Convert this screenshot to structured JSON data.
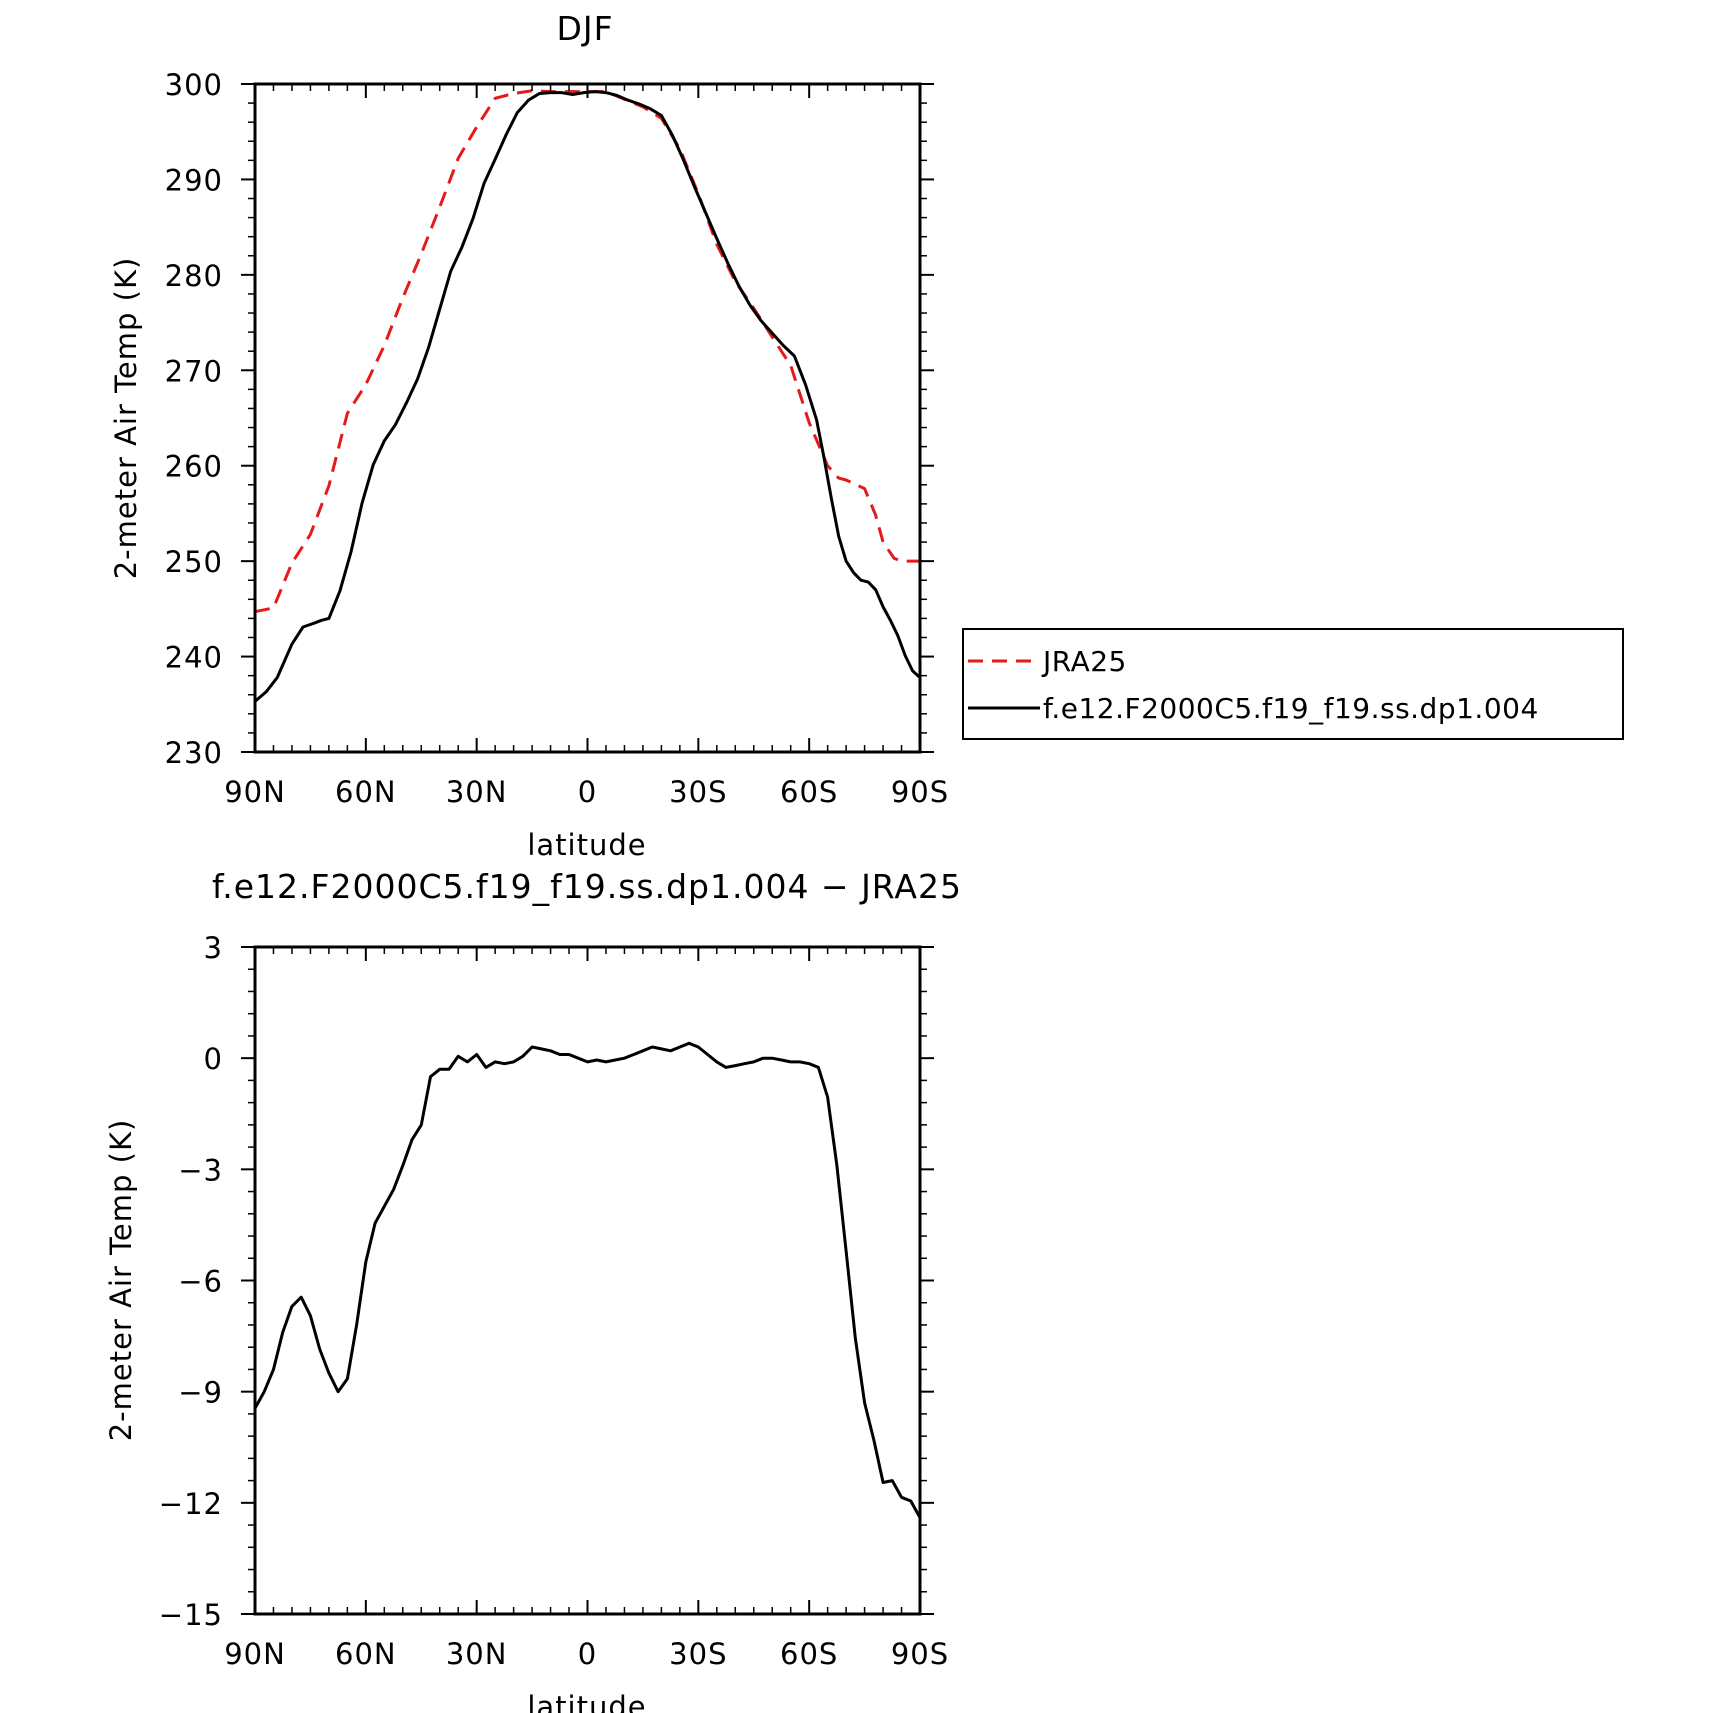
{
  "chart_data": [
    {
      "type": "line",
      "title": "DJF",
      "xlabel": "latitude",
      "ylabel": "2-meter Air Temp (K)",
      "xlim": [
        90,
        -90
      ],
      "ylim": [
        230,
        300
      ],
      "x_ticks": [
        90,
        60,
        30,
        0,
        -30,
        -60,
        -90
      ],
      "x_tick_labels": [
        "90N",
        "60N",
        "30N",
        "0",
        "30S",
        "60S",
        "90S"
      ],
      "y_ticks": [
        230,
        240,
        250,
        260,
        270,
        280,
        290,
        300
      ],
      "y_tick_labels": [
        "230",
        "240",
        "250",
        "260",
        "270",
        "280",
        "290",
        "300"
      ],
      "grid": false,
      "legend_position": "right",
      "series": [
        {
          "name": "JRA25",
          "color": "#e41a1c",
          "dash": "dashed",
          "x": [
            90,
            85,
            80,
            75,
            70,
            65,
            60,
            55,
            50,
            45,
            40,
            35,
            30,
            25,
            20,
            15,
            10,
            5,
            0,
            -5,
            -10,
            -15,
            -20,
            -25,
            -30,
            -35,
            -40,
            -45,
            -50,
            -55,
            -60,
            -65,
            -68,
            -70,
            -75,
            -78,
            -80,
            -83,
            -85,
            -88,
            -90
          ],
          "y": [
            244.7,
            245.1,
            249.8,
            252.8,
            257.9,
            265.5,
            268.5,
            272.6,
            277.6,
            282.2,
            287.1,
            292.2,
            295.5,
            298.5,
            299.0,
            299.3,
            299.2,
            299.2,
            299.2,
            299.2,
            298.4,
            297.6,
            296.4,
            293.2,
            288.5,
            283.2,
            279.3,
            276.5,
            273.5,
            270.5,
            264.5,
            260.0,
            258.7,
            258.5,
            257.6,
            254.8,
            252.0,
            250.3,
            250.0,
            250.0,
            250.0
          ]
        },
        {
          "name": "f.e12.F2000C5.f19_f19.ss.dp1.004",
          "color": "#000000",
          "dash": "solid",
          "x": [
            90,
            87,
            84,
            80,
            77,
            74,
            72,
            70,
            67,
            64,
            61,
            58,
            55,
            52,
            49,
            46,
            43,
            40,
            37,
            34,
            31,
            28,
            25,
            22,
            19,
            16,
            13,
            10,
            7,
            4,
            1,
            -2,
            -5,
            -8,
            -11,
            -14,
            -17,
            -20,
            -23,
            -26,
            -29,
            -32,
            -35,
            -38,
            -41,
            -44,
            -47,
            -50,
            -53,
            -56,
            -59,
            -62,
            -64,
            -66,
            -68,
            -70,
            -72,
            -74,
            -76,
            -78,
            -80,
            -82,
            -84,
            -86,
            -88,
            -90
          ],
          "y": [
            235.3,
            236.3,
            237.8,
            241.3,
            243.1,
            243.5,
            243.8,
            244.0,
            246.9,
            251.0,
            256.1,
            260.1,
            262.6,
            264.3,
            266.6,
            269.1,
            272.4,
            276.4,
            280.4,
            282.9,
            285.9,
            289.6,
            292.1,
            294.7,
            297.0,
            298.3,
            299.0,
            299.1,
            299.1,
            298.9,
            299.1,
            299.2,
            299.1,
            298.8,
            298.3,
            297.9,
            297.4,
            296.7,
            294.6,
            292.0,
            289.2,
            286.5,
            283.8,
            281.2,
            278.8,
            276.8,
            275.2,
            273.9,
            272.6,
            271.5,
            268.5,
            264.8,
            260.9,
            256.6,
            252.6,
            250.0,
            248.8,
            248.0,
            247.8,
            247.0,
            245.2,
            243.8,
            242.2,
            240.1,
            238.5,
            237.8
          ]
        }
      ]
    },
    {
      "type": "line",
      "title": "f.e12.F2000C5.f19_f19.ss.dp1.004 − JRA25",
      "xlabel": "latitude",
      "ylabel": "2-meter Air Temp (K)",
      "xlim": [
        90,
        -90
      ],
      "ylim": [
        -15,
        3
      ],
      "x_ticks": [
        90,
        60,
        30,
        0,
        -30,
        -60,
        -90
      ],
      "x_tick_labels": [
        "90N",
        "60N",
        "30N",
        "0",
        "30S",
        "60S",
        "90S"
      ],
      "y_ticks": [
        -15,
        -12,
        -9,
        -6,
        -3,
        0,
        3
      ],
      "y_tick_labels": [
        "−15",
        "−12",
        "−9",
        "−6",
        "−3",
        "0",
        "3"
      ],
      "grid": false,
      "series": [
        {
          "name": "",
          "color": "#000000",
          "dash": "solid",
          "x": [
            90,
            87.5,
            85,
            82.5,
            80,
            77.5,
            75,
            72.5,
            70,
            67.5,
            65,
            62.5,
            60,
            57.5,
            55,
            52.5,
            50,
            47.5,
            45,
            42.5,
            40,
            37.5,
            35,
            32.5,
            30,
            27.5,
            25,
            22.5,
            20,
            17.5,
            15,
            12.5,
            10,
            7.5,
            5,
            2.5,
            0,
            -2.5,
            -5,
            -7.5,
            -10,
            -12.5,
            -15,
            -17.5,
            -20,
            -22.5,
            -25,
            -27.5,
            -30,
            -32.5,
            -35,
            -37.5,
            -40,
            -42.5,
            -45,
            -47.5,
            -50,
            -52.5,
            -55,
            -57.5,
            -60,
            -62.5,
            -65,
            -67.5,
            -70,
            -72.5,
            -75,
            -77.5,
            -80,
            -82.5,
            -85,
            -87.5,
            -90
          ],
          "y": [
            -9.45,
            -9.0,
            -8.4,
            -7.4,
            -6.7,
            -6.45,
            -6.95,
            -7.85,
            -8.5,
            -9.0,
            -8.65,
            -7.2,
            -5.5,
            -4.45,
            -4.0,
            -3.55,
            -2.9,
            -2.2,
            -1.8,
            -0.5,
            -0.3,
            -0.3,
            0.05,
            -0.1,
            0.1,
            -0.25,
            -0.1,
            -0.15,
            -0.1,
            0.05,
            0.3,
            0.25,
            0.2,
            0.1,
            0.1,
            0.0,
            -0.1,
            -0.05,
            -0.1,
            -0.05,
            0.0,
            0.1,
            0.2,
            0.3,
            0.25,
            0.2,
            0.3,
            0.4,
            0.3,
            0.1,
            -0.1,
            -0.25,
            -0.2,
            -0.15,
            -0.1,
            0.0,
            0.0,
            -0.05,
            -0.1,
            -0.1,
            -0.15,
            -0.25,
            -1.05,
            -2.9,
            -5.2,
            -7.55,
            -9.3,
            -10.3,
            -11.45,
            -11.4,
            -11.85,
            -11.95,
            -12.4
          ]
        }
      ]
    }
  ]
}
